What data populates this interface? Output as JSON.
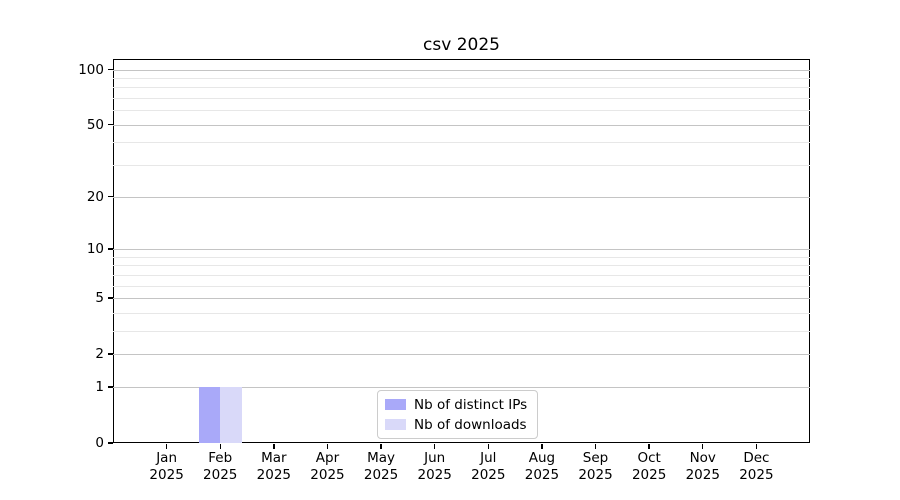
{
  "chart_data": {
    "type": "bar",
    "title": "csv 2025",
    "categories": [
      "Jan 2025",
      "Feb 2025",
      "Mar 2025",
      "Apr 2025",
      "May 2025",
      "Jun 2025",
      "Jul 2025",
      "Aug 2025",
      "Sep 2025",
      "Oct 2025",
      "Nov 2025",
      "Dec 2025"
    ],
    "x_tick_months": [
      "Jan",
      "Feb",
      "Mar",
      "Apr",
      "May",
      "Jun",
      "Jul",
      "Aug",
      "Sep",
      "Oct",
      "Nov",
      "Dec"
    ],
    "x_tick_year": "2025",
    "series": [
      {
        "name": "Nb of distinct IPs",
        "color": "#a9a9f9",
        "values": [
          0,
          1,
          0,
          0,
          0,
          0,
          0,
          0,
          0,
          0,
          0,
          0
        ]
      },
      {
        "name": "Nb of downloads",
        "color": "#d9d9f9",
        "values": [
          0,
          1,
          0,
          0,
          0,
          0,
          0,
          0,
          0,
          0,
          0,
          0
        ]
      }
    ],
    "xlabel": "",
    "ylabel": "",
    "yscale": "log1p",
    "ylim": [
      0,
      114
    ],
    "yticks": [
      0,
      1,
      2,
      5,
      10,
      20,
      50,
      100
    ],
    "minor_yticks": [
      3,
      4,
      6,
      7,
      8,
      9,
      30,
      40,
      60,
      70,
      80,
      90
    ],
    "grid": true,
    "legend_position": "lower center inside"
  }
}
